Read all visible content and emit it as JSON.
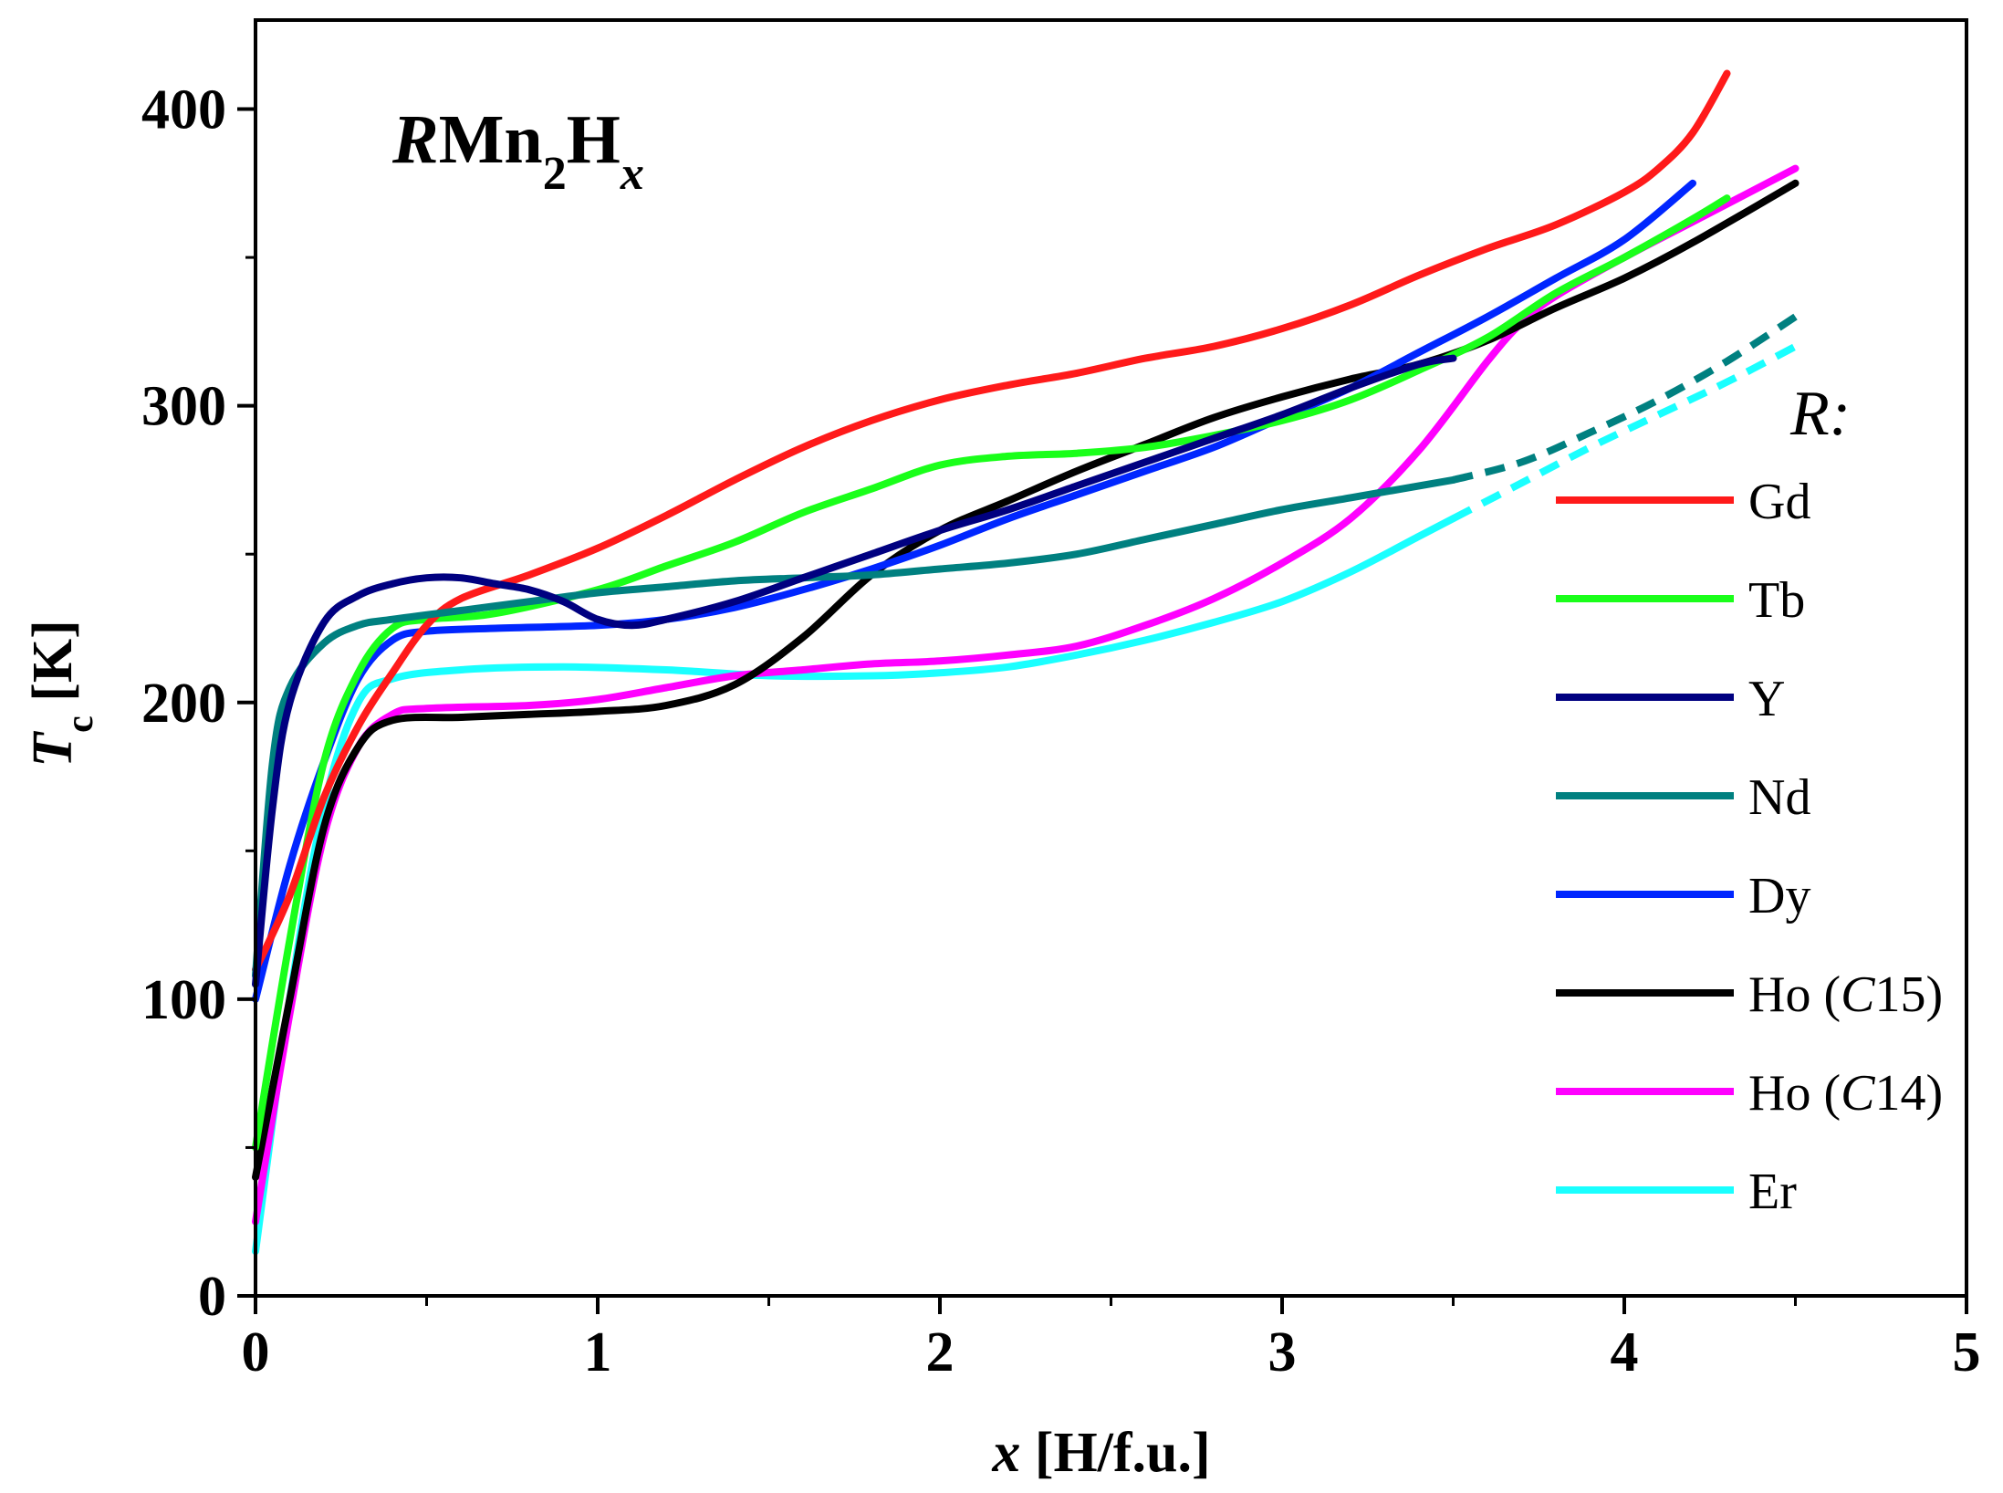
{
  "chart_data": {
    "type": "line",
    "title_parts": [
      "R",
      "Mn",
      "2",
      "H",
      "x"
    ],
    "xlabel_parts": [
      "x",
      " [H/f.u.]"
    ],
    "ylabel_parts": [
      "T",
      "c",
      " [K]"
    ],
    "xlim": [
      0,
      5
    ],
    "ylim": [
      0,
      430
    ],
    "xticks": [
      0,
      1,
      2,
      3,
      4,
      5
    ],
    "yticks": [
      0,
      100,
      200,
      300,
      400
    ],
    "legend_title": "R:",
    "legend_position": "right",
    "series": [
      {
        "name": "Gd",
        "label_parts": [
          "Gd"
        ],
        "color": "#ff1a1a",
        "dashed_from": null,
        "points": [
          [
            0.0,
            110
          ],
          [
            0.1,
            135
          ],
          [
            0.2,
            168
          ],
          [
            0.3,
            192
          ],
          [
            0.4,
            210
          ],
          [
            0.5,
            226
          ],
          [
            0.6,
            235
          ],
          [
            0.8,
            243
          ],
          [
            1.0,
            252
          ],
          [
            1.2,
            263
          ],
          [
            1.4,
            275
          ],
          [
            1.6,
            286
          ],
          [
            1.8,
            295
          ],
          [
            2.0,
            302
          ],
          [
            2.2,
            307
          ],
          [
            2.4,
            311
          ],
          [
            2.6,
            316
          ],
          [
            2.8,
            320
          ],
          [
            3.0,
            326
          ],
          [
            3.2,
            334
          ],
          [
            3.4,
            344
          ],
          [
            3.6,
            353
          ],
          [
            3.8,
            361
          ],
          [
            4.0,
            372
          ],
          [
            4.1,
            380
          ],
          [
            4.2,
            392
          ],
          [
            4.3,
            412
          ]
        ]
      },
      {
        "name": "Tb",
        "label_parts": [
          "Tb"
        ],
        "color": "#1aff1a",
        "dashed_from": null,
        "points": [
          [
            0.0,
            50
          ],
          [
            0.1,
            120
          ],
          [
            0.2,
            180
          ],
          [
            0.3,
            210
          ],
          [
            0.4,
            225
          ],
          [
            0.5,
            228
          ],
          [
            0.7,
            230
          ],
          [
            1.0,
            238
          ],
          [
            1.2,
            246
          ],
          [
            1.4,
            254
          ],
          [
            1.6,
            264
          ],
          [
            1.8,
            272
          ],
          [
            2.0,
            280
          ],
          [
            2.2,
            283
          ],
          [
            2.4,
            284
          ],
          [
            2.6,
            286
          ],
          [
            2.8,
            290
          ],
          [
            3.0,
            295
          ],
          [
            3.2,
            302
          ],
          [
            3.4,
            312
          ],
          [
            3.6,
            323
          ],
          [
            3.8,
            338
          ],
          [
            4.0,
            350
          ],
          [
            4.2,
            363
          ],
          [
            4.3,
            370
          ]
        ]
      },
      {
        "name": "Y",
        "label_parts": [
          "Y"
        ],
        "color": "#000080",
        "dashed_from": null,
        "points": [
          [
            0.0,
            105
          ],
          [
            0.05,
            165
          ],
          [
            0.1,
            200
          ],
          [
            0.2,
            227
          ],
          [
            0.3,
            236
          ],
          [
            0.4,
            240
          ],
          [
            0.5,
            242
          ],
          [
            0.6,
            242
          ],
          [
            0.7,
            240
          ],
          [
            0.8,
            238
          ],
          [
            0.9,
            234
          ],
          [
            1.0,
            228
          ],
          [
            1.1,
            226
          ],
          [
            1.2,
            228
          ],
          [
            1.4,
            234
          ],
          [
            1.6,
            242
          ],
          [
            1.8,
            250
          ],
          [
            2.0,
            258
          ],
          [
            2.2,
            265
          ],
          [
            2.4,
            273
          ],
          [
            2.6,
            281
          ],
          [
            2.8,
            289
          ],
          [
            3.0,
            297
          ],
          [
            3.2,
            306
          ],
          [
            3.4,
            314
          ],
          [
            3.5,
            316
          ]
        ]
      },
      {
        "name": "Nd",
        "label_parts": [
          "Nd"
        ],
        "color": "#008080",
        "dashed_from": 3.5,
        "points": [
          [
            0.0,
            108
          ],
          [
            0.05,
            180
          ],
          [
            0.1,
            205
          ],
          [
            0.2,
            220
          ],
          [
            0.3,
            226
          ],
          [
            0.4,
            228
          ],
          [
            0.6,
            231
          ],
          [
            0.8,
            234
          ],
          [
            1.0,
            237
          ],
          [
            1.2,
            239
          ],
          [
            1.4,
            241
          ],
          [
            1.6,
            242
          ],
          [
            1.8,
            243
          ],
          [
            2.0,
            245
          ],
          [
            2.2,
            247
          ],
          [
            2.4,
            250
          ],
          [
            2.6,
            255
          ],
          [
            2.8,
            260
          ],
          [
            3.0,
            265
          ],
          [
            3.2,
            269
          ],
          [
            3.4,
            273
          ],
          [
            3.5,
            275
          ],
          [
            3.7,
            281
          ],
          [
            3.9,
            291
          ],
          [
            4.1,
            302
          ],
          [
            4.3,
            315
          ],
          [
            4.5,
            330
          ]
        ]
      },
      {
        "name": "Dy",
        "label_parts": [
          "Dy"
        ],
        "color": "#0026ff",
        "dashed_from": null,
        "points": [
          [
            0.0,
            100
          ],
          [
            0.1,
            145
          ],
          [
            0.2,
            180
          ],
          [
            0.3,
            208
          ],
          [
            0.4,
            221
          ],
          [
            0.5,
            224
          ],
          [
            0.7,
            225
          ],
          [
            1.0,
            226
          ],
          [
            1.2,
            228
          ],
          [
            1.4,
            232
          ],
          [
            1.6,
            238
          ],
          [
            1.8,
            245
          ],
          [
            2.0,
            253
          ],
          [
            2.2,
            262
          ],
          [
            2.4,
            270
          ],
          [
            2.6,
            278
          ],
          [
            2.8,
            286
          ],
          [
            3.0,
            296
          ],
          [
            3.2,
            306
          ],
          [
            3.4,
            318
          ],
          [
            3.6,
            330
          ],
          [
            3.8,
            343
          ],
          [
            4.0,
            356
          ],
          [
            4.2,
            375
          ]
        ]
      },
      {
        "name": "Ho (C15)",
        "label_parts": [
          "Ho (",
          "C",
          "15)"
        ],
        "color": "#000000",
        "dashed_from": null,
        "points": [
          [
            0.0,
            40
          ],
          [
            0.1,
            100
          ],
          [
            0.2,
            158
          ],
          [
            0.3,
            185
          ],
          [
            0.4,
            194
          ],
          [
            0.6,
            195
          ],
          [
            0.8,
            196
          ],
          [
            1.0,
            197
          ],
          [
            1.2,
            199
          ],
          [
            1.4,
            206
          ],
          [
            1.6,
            222
          ],
          [
            1.8,
            243
          ],
          [
            2.0,
            258
          ],
          [
            2.2,
            268
          ],
          [
            2.4,
            278
          ],
          [
            2.6,
            287
          ],
          [
            2.8,
            296
          ],
          [
            3.0,
            303
          ],
          [
            3.2,
            309
          ],
          [
            3.4,
            314
          ],
          [
            3.6,
            322
          ],
          [
            3.8,
            333
          ],
          [
            4.0,
            343
          ],
          [
            4.2,
            355
          ],
          [
            4.5,
            375
          ]
        ]
      },
      {
        "name": "Ho (C14)",
        "label_parts": [
          "Ho (",
          "C",
          "14)"
        ],
        "color": "#ff00ff",
        "dashed_from": null,
        "points": [
          [
            0.0,
            25
          ],
          [
            0.1,
            95
          ],
          [
            0.2,
            155
          ],
          [
            0.3,
            185
          ],
          [
            0.4,
            196
          ],
          [
            0.5,
            198
          ],
          [
            0.8,
            199
          ],
          [
            1.0,
            201
          ],
          [
            1.2,
            205
          ],
          [
            1.4,
            209
          ],
          [
            1.6,
            211
          ],
          [
            1.8,
            213
          ],
          [
            2.0,
            214
          ],
          [
            2.2,
            216
          ],
          [
            2.4,
            219
          ],
          [
            2.6,
            226
          ],
          [
            2.8,
            235
          ],
          [
            3.0,
            247
          ],
          [
            3.2,
            262
          ],
          [
            3.4,
            285
          ],
          [
            3.6,
            315
          ],
          [
            3.7,
            328
          ],
          [
            3.8,
            337
          ],
          [
            4.0,
            350
          ],
          [
            4.2,
            362
          ],
          [
            4.5,
            380
          ]
        ]
      },
      {
        "name": "Er",
        "label_parts": [
          "Er"
        ],
        "color": "#1affff",
        "dashed_from": 3.5,
        "points": [
          [
            0.0,
            15
          ],
          [
            0.1,
            100
          ],
          [
            0.2,
            165
          ],
          [
            0.3,
            200
          ],
          [
            0.4,
            208
          ],
          [
            0.6,
            211
          ],
          [
            0.9,
            212
          ],
          [
            1.2,
            211
          ],
          [
            1.5,
            209
          ],
          [
            1.8,
            209
          ],
          [
            2.0,
            210
          ],
          [
            2.2,
            212
          ],
          [
            2.4,
            216
          ],
          [
            2.6,
            221
          ],
          [
            2.8,
            227
          ],
          [
            3.0,
            234
          ],
          [
            3.2,
            244
          ],
          [
            3.4,
            256
          ],
          [
            3.5,
            262
          ],
          [
            3.7,
            274
          ],
          [
            3.9,
            286
          ],
          [
            4.1,
            297
          ],
          [
            4.3,
            308
          ],
          [
            4.5,
            320
          ]
        ]
      }
    ]
  }
}
